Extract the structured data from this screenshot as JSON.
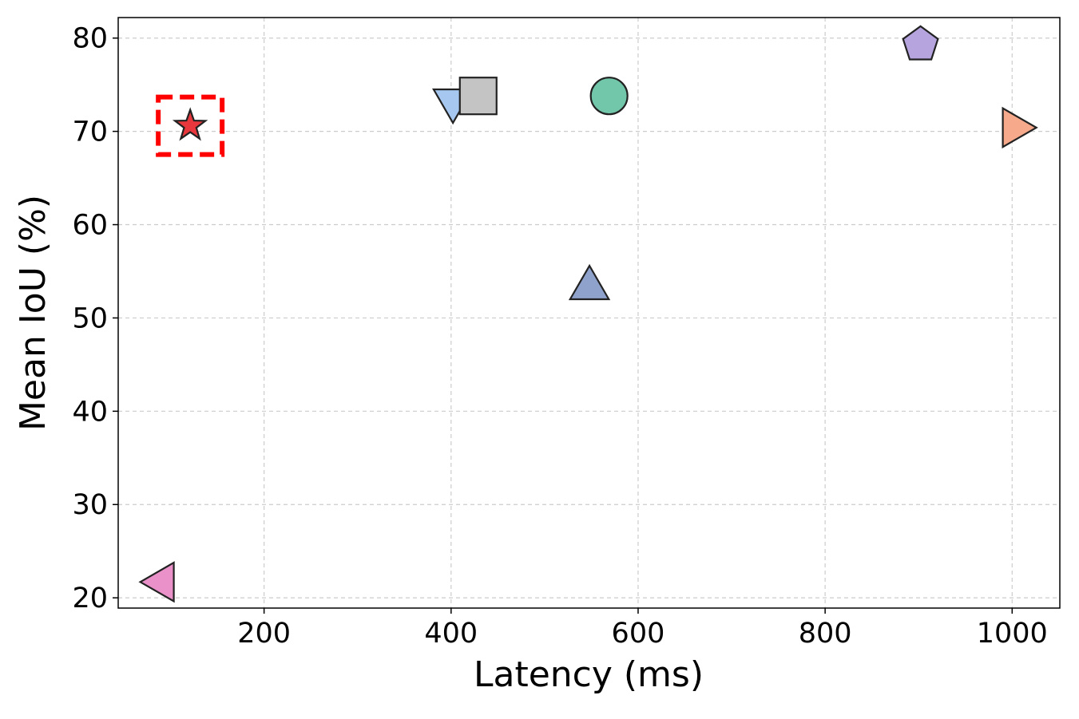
{
  "chart_data": {
    "type": "scatter",
    "x_label": "Latency (ms)",
    "y_label": "Mean IoU (%)",
    "xlim": [
      44,
      1051
    ],
    "ylim": [
      18.9,
      82.2
    ],
    "xticks": [
      200,
      400,
      600,
      800,
      1000
    ],
    "yticks": [
      20,
      30,
      40,
      50,
      60,
      70,
      80
    ],
    "grid": true,
    "series": [
      {
        "color": "#e8383d",
        "marker": "star",
        "highlight": true,
        "x": [
          121
        ],
        "values": [
          70.6
        ]
      },
      {
        "color": "#a6c8f0",
        "marker": "triangle-down",
        "x": [
          402
        ],
        "values": [
          73.3
        ]
      },
      {
        "color": "#c4c4c4",
        "marker": "square",
        "x": [
          429
        ],
        "values": [
          73.8
        ]
      },
      {
        "color": "#72c6aa",
        "marker": "circle",
        "x": [
          569
        ],
        "values": [
          73.8
        ]
      },
      {
        "color": "#b5a4de",
        "marker": "pentagon",
        "x": [
          902
        ],
        "values": [
          79.3
        ]
      },
      {
        "color": "#f7a98b",
        "marker": "triangle-right",
        "x": [
          1002
        ],
        "values": [
          70.4
        ]
      },
      {
        "color": "#8fa2cc",
        "marker": "triangle-up",
        "x": [
          548
        ],
        "values": [
          53.2
        ]
      },
      {
        "color": "#e991c8",
        "marker": "triangle-left",
        "x": [
          91.5
        ],
        "values": [
          21.7
        ]
      }
    ]
  }
}
